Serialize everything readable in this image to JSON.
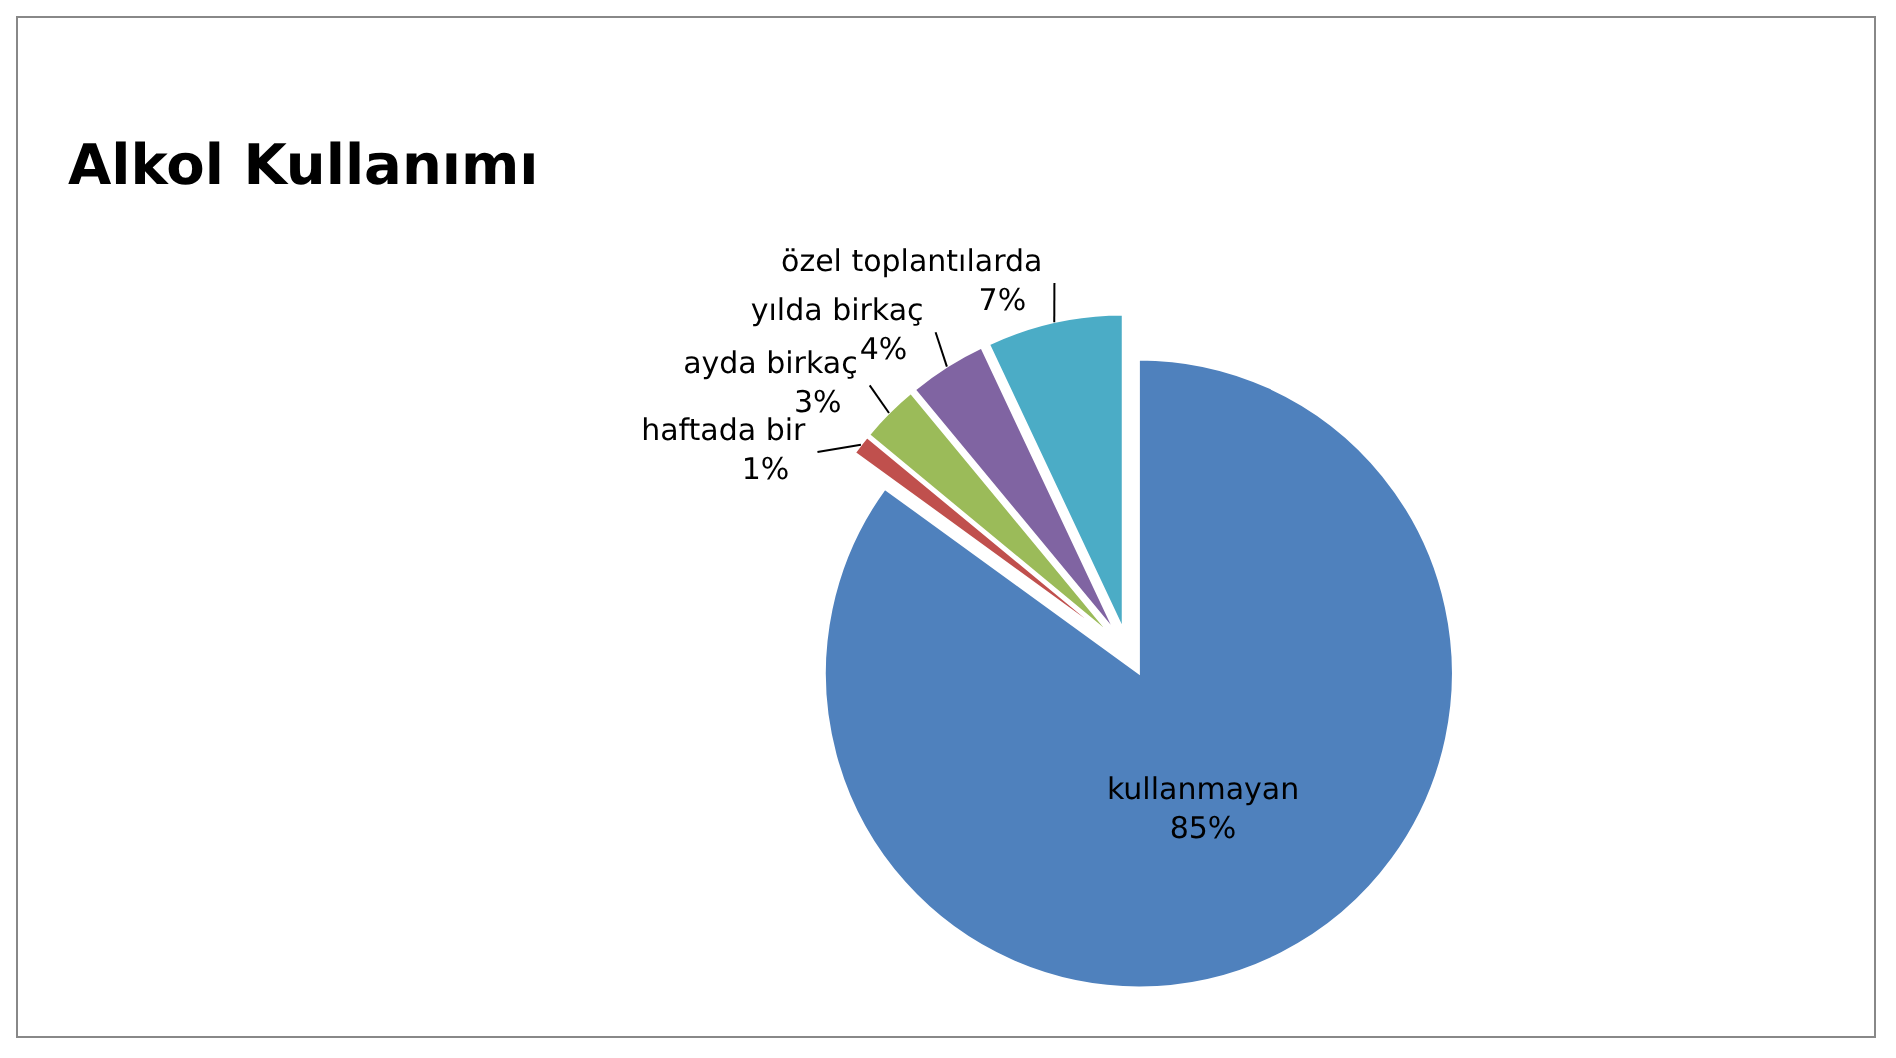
{
  "chart_data": {
    "type": "pie",
    "title": "Alkol Kullanımı",
    "categories": [
      "kullanmayan",
      "haftada bir",
      "ayda birkaç",
      "yılda birkaç",
      "özel toplantılarda"
    ],
    "values": [
      85,
      1,
      3,
      4,
      7
    ],
    "value_labels": [
      "85%",
      "1%",
      "3%",
      "4%",
      "7%"
    ],
    "colors": [
      "#4f81bd",
      "#c0504d",
      "#9bbb59",
      "#8064a2",
      "#4bacc6"
    ]
  }
}
